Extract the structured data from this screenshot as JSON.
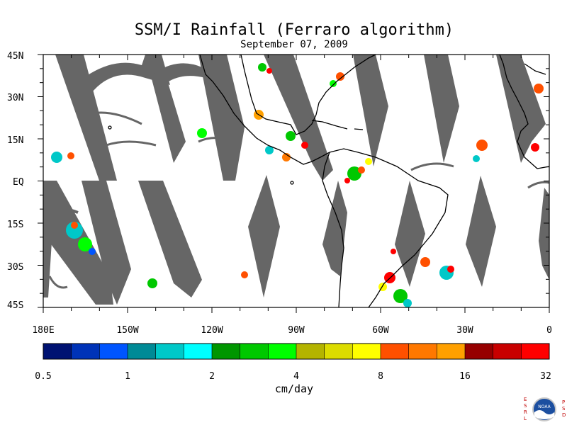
{
  "title": "SSM/I Rainfall (Ferraro algorithm)",
  "subtitle": "September 07, 2009",
  "map": {
    "lat_labels": [
      "45N",
      "30N",
      "15N",
      "EQ",
      "15S",
      "30S",
      "45S"
    ],
    "lon_labels": [
      "180E",
      "150W",
      "120W",
      "90W",
      "60W",
      "30W",
      "0"
    ],
    "swath_color": "#666666",
    "coast_color": "#000000"
  },
  "colorbar": {
    "unit": "cm/day",
    "tick_labels": [
      "0.5",
      "1",
      "2",
      "4",
      "8",
      "16",
      "32"
    ],
    "colors": [
      "#001272",
      "#0033b8",
      "#0055ff",
      "#008a96",
      "#00c8c8",
      "#00ffff",
      "#009600",
      "#00c800",
      "#00ff00",
      "#b4b400",
      "#dcdc00",
      "#ffff00",
      "#ff5000",
      "#ff7800",
      "#ffa000",
      "#960000",
      "#c80000",
      "#ff0000"
    ]
  },
  "logo": {
    "left_letters": [
      "E",
      "S",
      "R",
      "L"
    ],
    "right_letters": [
      "P",
      "S",
      "D"
    ],
    "center_text": "NOAA"
  }
}
